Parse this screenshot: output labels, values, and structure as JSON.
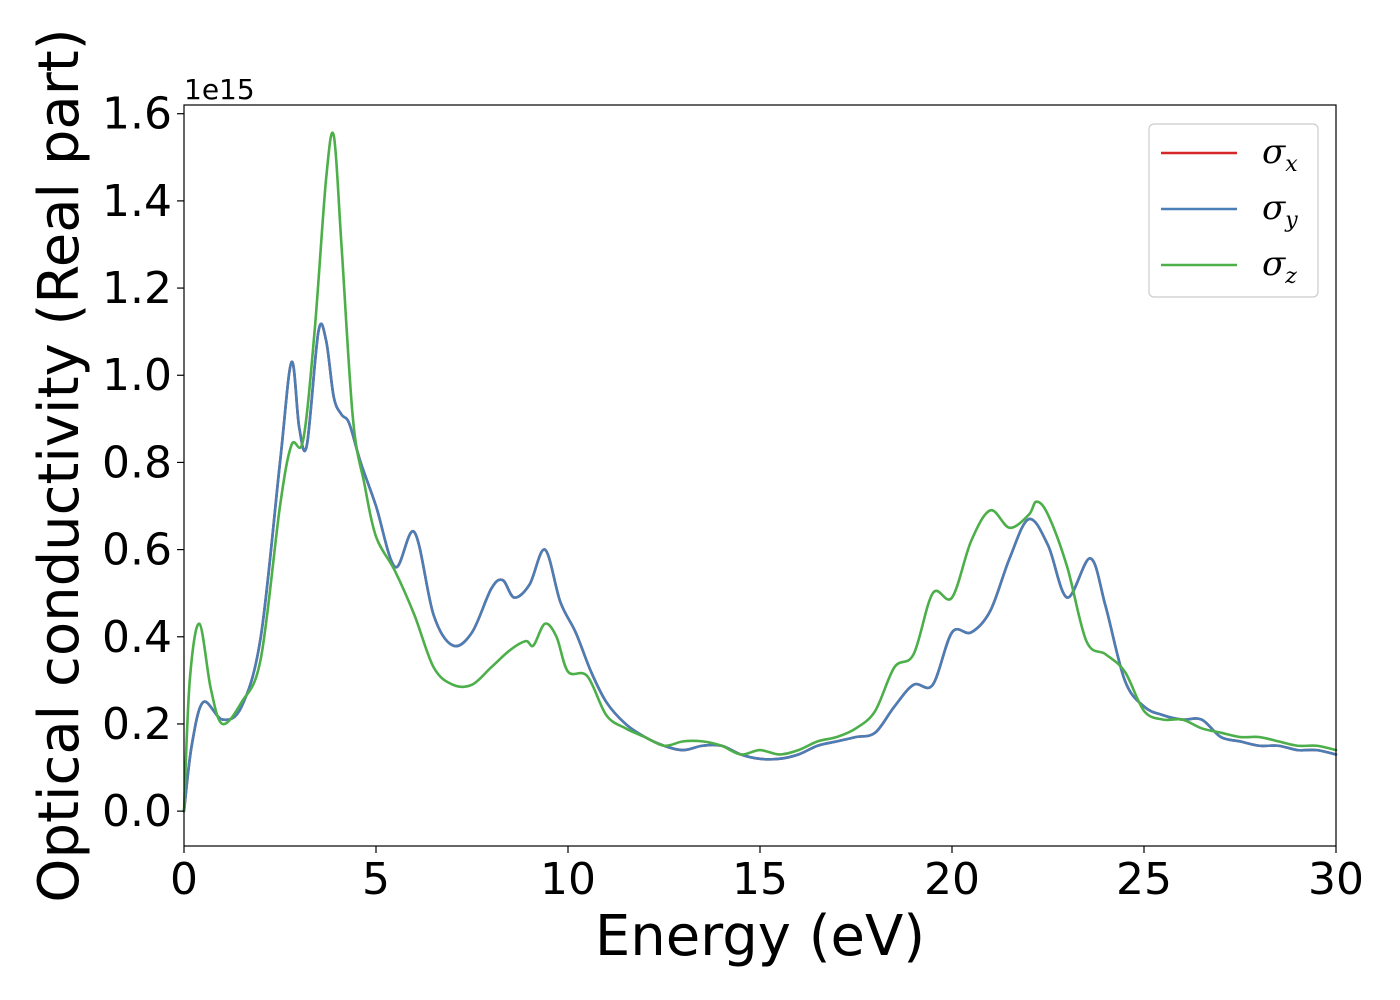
{
  "chart_data": {
    "type": "line",
    "xlabel": "Energy (eV)",
    "ylabel": "Optical conductivity (Real part)",
    "y_offset_label": "1e15",
    "xlim": [
      0,
      30
    ],
    "ylim": [
      -0.08,
      1.62
    ],
    "x_ticks": [
      0,
      5,
      10,
      15,
      20,
      25,
      30
    ],
    "x_tick_labels": [
      "0",
      "5",
      "10",
      "15",
      "20",
      "25",
      "30"
    ],
    "y_ticks": [
      0.0,
      0.2,
      0.4,
      0.6,
      0.8,
      1.0,
      1.2,
      1.4,
      1.6
    ],
    "y_tick_labels": [
      "0.0",
      "0.2",
      "0.4",
      "0.6",
      "0.8",
      "1.0",
      "1.2",
      "1.4",
      "1.6"
    ],
    "grid": false,
    "legend_position": "top-right",
    "series": [
      {
        "name": "σx",
        "symbol": "σ",
        "subscript": "x",
        "color": "#d62728",
        "x": [
          0,
          0.2,
          0.5,
          1.0,
          1.5,
          2.0,
          2.5,
          2.8,
          3.0,
          3.2,
          3.5,
          3.7,
          3.9,
          4.1,
          4.3,
          4.6,
          5.0,
          5.5,
          6.0,
          6.5,
          7.0,
          7.5,
          8.0,
          8.3,
          8.6,
          9.0,
          9.4,
          9.8,
          10.2,
          10.6,
          11.0,
          11.5,
          12.0,
          12.5,
          13.0,
          13.5,
          14.0,
          14.5,
          15.0,
          15.5,
          16.0,
          16.5,
          17.0,
          17.5,
          18.0,
          18.5,
          19.0,
          19.5,
          20.0,
          20.5,
          21.0,
          21.5,
          22.0,
          22.5,
          23.0,
          23.6,
          24.0,
          24.5,
          25.0,
          25.5,
          26.0,
          26.5,
          27.0,
          27.5,
          28.0,
          28.5,
          29.0,
          29.5,
          30.0
        ],
        "values": [
          0,
          0.15,
          0.25,
          0.21,
          0.24,
          0.4,
          0.8,
          1.03,
          0.88,
          0.84,
          1.1,
          1.08,
          0.95,
          0.91,
          0.89,
          0.8,
          0.7,
          0.56,
          0.64,
          0.45,
          0.38,
          0.41,
          0.51,
          0.53,
          0.49,
          0.52,
          0.6,
          0.48,
          0.41,
          0.32,
          0.25,
          0.2,
          0.17,
          0.15,
          0.14,
          0.15,
          0.15,
          0.13,
          0.12,
          0.12,
          0.13,
          0.15,
          0.16,
          0.17,
          0.18,
          0.24,
          0.29,
          0.29,
          0.41,
          0.41,
          0.46,
          0.58,
          0.67,
          0.61,
          0.49,
          0.58,
          0.47,
          0.3,
          0.24,
          0.22,
          0.21,
          0.21,
          0.17,
          0.16,
          0.15,
          0.15,
          0.14,
          0.14,
          0.13
        ]
      },
      {
        "name": "σy",
        "symbol": "σ",
        "subscript": "y",
        "color": "#4a7eb6",
        "x": [
          0,
          0.2,
          0.5,
          1.0,
          1.5,
          2.0,
          2.5,
          2.8,
          3.0,
          3.2,
          3.5,
          3.7,
          3.9,
          4.1,
          4.3,
          4.6,
          5.0,
          5.5,
          6.0,
          6.5,
          7.0,
          7.5,
          8.0,
          8.3,
          8.6,
          9.0,
          9.4,
          9.8,
          10.2,
          10.6,
          11.0,
          11.5,
          12.0,
          12.5,
          13.0,
          13.5,
          14.0,
          14.5,
          15.0,
          15.5,
          16.0,
          16.5,
          17.0,
          17.5,
          18.0,
          18.5,
          19.0,
          19.5,
          20.0,
          20.5,
          21.0,
          21.5,
          22.0,
          22.5,
          23.0,
          23.6,
          24.0,
          24.5,
          25.0,
          25.5,
          26.0,
          26.5,
          27.0,
          27.5,
          28.0,
          28.5,
          29.0,
          29.5,
          30.0
        ],
        "values": [
          0,
          0.15,
          0.25,
          0.21,
          0.24,
          0.4,
          0.8,
          1.03,
          0.88,
          0.84,
          1.1,
          1.08,
          0.95,
          0.91,
          0.89,
          0.8,
          0.7,
          0.56,
          0.64,
          0.45,
          0.38,
          0.41,
          0.51,
          0.53,
          0.49,
          0.52,
          0.6,
          0.48,
          0.41,
          0.32,
          0.25,
          0.2,
          0.17,
          0.15,
          0.14,
          0.15,
          0.15,
          0.13,
          0.12,
          0.12,
          0.13,
          0.15,
          0.16,
          0.17,
          0.18,
          0.24,
          0.29,
          0.29,
          0.41,
          0.41,
          0.46,
          0.58,
          0.67,
          0.61,
          0.49,
          0.58,
          0.47,
          0.3,
          0.24,
          0.22,
          0.21,
          0.21,
          0.17,
          0.16,
          0.15,
          0.15,
          0.14,
          0.14,
          0.13
        ]
      },
      {
        "name": "σz",
        "symbol": "σ",
        "subscript": "z",
        "color": "#4daf4a",
        "x": [
          0,
          0.15,
          0.4,
          0.7,
          1.0,
          1.5,
          2.0,
          2.5,
          2.8,
          3.1,
          3.4,
          3.7,
          3.9,
          4.1,
          4.4,
          4.7,
          5.0,
          5.5,
          6.0,
          6.5,
          7.0,
          7.5,
          8.0,
          8.5,
          8.9,
          9.1,
          9.4,
          9.7,
          10.0,
          10.5,
          11.0,
          11.5,
          12.0,
          12.5,
          13.0,
          13.5,
          14.0,
          14.5,
          15.0,
          15.5,
          16.0,
          16.5,
          17.0,
          17.5,
          18.0,
          18.5,
          19.0,
          19.5,
          20.0,
          20.5,
          21.0,
          21.5,
          22.0,
          22.2,
          22.5,
          23.0,
          23.5,
          24.0,
          24.5,
          25.0,
          25.5,
          26.0,
          26.5,
          27.0,
          27.5,
          28.0,
          28.5,
          29.0,
          29.5,
          30.0
        ],
        "values": [
          0,
          0.3,
          0.43,
          0.28,
          0.2,
          0.25,
          0.35,
          0.7,
          0.84,
          0.85,
          1.1,
          1.45,
          1.55,
          1.3,
          0.9,
          0.75,
          0.63,
          0.55,
          0.45,
          0.33,
          0.29,
          0.29,
          0.33,
          0.37,
          0.39,
          0.38,
          0.43,
          0.4,
          0.32,
          0.31,
          0.22,
          0.19,
          0.17,
          0.15,
          0.16,
          0.16,
          0.15,
          0.13,
          0.14,
          0.13,
          0.14,
          0.16,
          0.17,
          0.19,
          0.23,
          0.33,
          0.36,
          0.5,
          0.49,
          0.62,
          0.69,
          0.65,
          0.68,
          0.71,
          0.68,
          0.56,
          0.39,
          0.36,
          0.32,
          0.23,
          0.21,
          0.21,
          0.19,
          0.18,
          0.17,
          0.17,
          0.16,
          0.15,
          0.15,
          0.14
        ]
      }
    ]
  }
}
